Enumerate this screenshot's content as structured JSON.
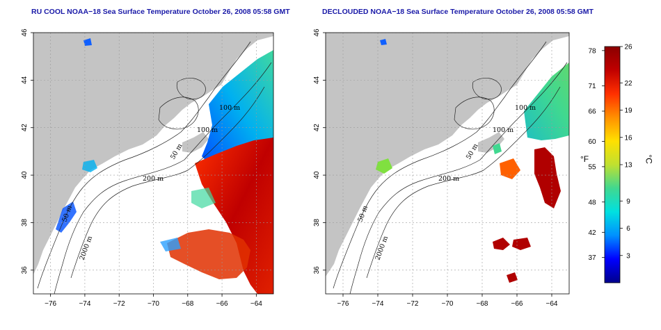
{
  "panels": [
    {
      "title": "RU COOL NOAA−18 Sea Surface Temperature October 26, 2008 05:58 GMT",
      "contour_labels": [
        "100 m",
        "100 m",
        "50 m",
        "200 m",
        "50 m",
        "2000 m"
      ]
    },
    {
      "title": "DECLOUDED NOAA−18 Sea Surface Temperature October 26, 2008 05:58 GMT",
      "contour_labels": [
        "100 m",
        "100 m",
        "50 m",
        "200 m",
        "50 m",
        "2000 m"
      ]
    }
  ],
  "axes": {
    "x_ticks": [
      "−76",
      "−74",
      "−72",
      "−70",
      "−68",
      "−66",
      "−64"
    ],
    "x_values": [
      -76,
      -74,
      -72,
      -70,
      -68,
      -66,
      -64
    ],
    "x_range": [
      -77,
      -63
    ],
    "y_ticks": [
      "36",
      "38",
      "40",
      "42",
      "44",
      "46"
    ],
    "y_values": [
      36,
      38,
      40,
      42,
      44,
      46
    ],
    "y_range": [
      35,
      46
    ]
  },
  "colorbar": {
    "celsius_ticks": [
      "26",
      "22",
      "19",
      "16",
      "13",
      "9",
      "6",
      "3"
    ],
    "celsius_values": [
      26,
      22,
      19,
      16,
      13,
      9,
      6,
      3
    ],
    "fahrenheit_ticks": [
      "78",
      "71",
      "66",
      "60",
      "55",
      "48",
      "42",
      "37"
    ],
    "fahrenheit_values": [
      78,
      71,
      66,
      60,
      55,
      48,
      42,
      37
    ],
    "range_c": [
      0,
      26
    ],
    "unit_f": "°F",
    "unit_c": "°C",
    "stops": [
      "#00008b",
      "#0000ff",
      "#0090ff",
      "#00e0e0",
      "#40d890",
      "#c0e030",
      "#ffe000",
      "#ff9000",
      "#ff3000",
      "#c00000",
      "#8b0000"
    ]
  },
  "colors": {
    "land": "#c4c4c4",
    "ocean": "#ffffff",
    "grid": "#9a9a9a"
  }
}
